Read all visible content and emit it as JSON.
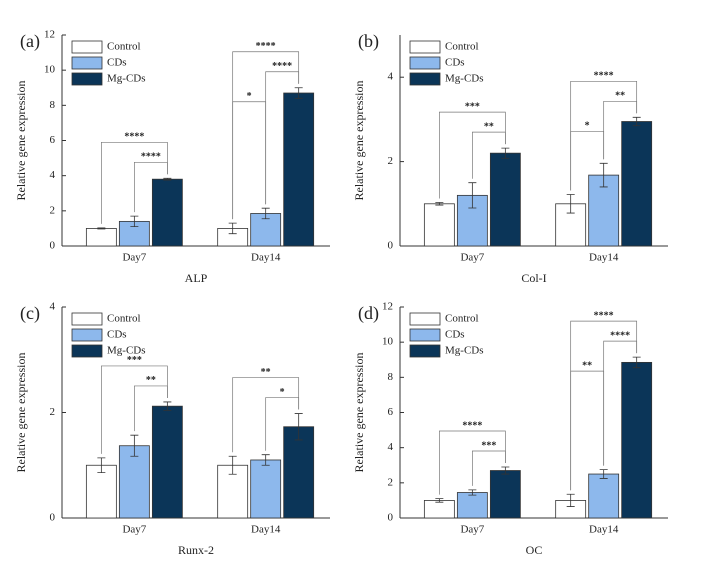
{
  "chart_data": [
    {
      "type": "bar",
      "panel_label": "(a)",
      "y_label": "Relative gene expression",
      "x_label": "ALP",
      "categories": [
        "Day7",
        "Day14"
      ],
      "series": [
        {
          "name": "Control",
          "color": "#ffffff",
          "values": [
            1.0,
            1.0
          ],
          "errors": [
            0.03,
            0.3
          ]
        },
        {
          "name": "CDs",
          "color": "#8db8ec",
          "values": [
            1.4,
            1.85
          ],
          "errors": [
            0.3,
            0.3
          ]
        },
        {
          "name": "Mg-CDs",
          "color": "#0b3558",
          "values": [
            3.8,
            8.7
          ],
          "errors": [
            0.05,
            0.3
          ]
        }
      ],
      "significance": [
        {
          "outer": "****",
          "right": "****"
        },
        {
          "outer": "****",
          "left": "*",
          "right": "****"
        }
      ],
      "ylim": [
        0,
        12
      ],
      "yticks": [
        0,
        2,
        4,
        6,
        8,
        10,
        12
      ]
    },
    {
      "type": "bar",
      "panel_label": "(b)",
      "y_label": "Relative gene expression",
      "x_label": "Col-I",
      "categories": [
        "Day7",
        "Day14"
      ],
      "series": [
        {
          "name": "Control",
          "color": "#ffffff",
          "values": [
            1.0,
            1.0
          ],
          "errors": [
            0.03,
            0.22
          ]
        },
        {
          "name": "CDs",
          "color": "#8db8ec",
          "values": [
            1.2,
            1.68
          ],
          "errors": [
            0.3,
            0.28
          ]
        },
        {
          "name": "Mg-CDs",
          "color": "#0b3558",
          "values": [
            2.2,
            2.95
          ],
          "errors": [
            0.12,
            0.1
          ]
        }
      ],
      "significance": [
        {
          "outer": "***",
          "right": "**"
        },
        {
          "outer": "****",
          "left": "*",
          "right": "**"
        }
      ],
      "ylim": [
        0,
        5
      ],
      "yticks": [
        0,
        2,
        4
      ]
    },
    {
      "type": "bar",
      "panel_label": "(c)",
      "y_label": "Relative gene expression",
      "x_label": "Runx-2",
      "categories": [
        "Day7",
        "Day14"
      ],
      "series": [
        {
          "name": "Control",
          "color": "#ffffff",
          "values": [
            1.0,
            1.0
          ],
          "errors": [
            0.14,
            0.17
          ]
        },
        {
          "name": "CDs",
          "color": "#8db8ec",
          "values": [
            1.37,
            1.1
          ],
          "errors": [
            0.2,
            0.1
          ]
        },
        {
          "name": "Mg-CDs",
          "color": "#0b3558",
          "values": [
            2.12,
            1.73
          ],
          "errors": [
            0.08,
            0.25
          ]
        }
      ],
      "significance": [
        {
          "outer": "***",
          "right": "**"
        },
        {
          "outer": "**",
          "right": "*"
        }
      ],
      "ylim": [
        0,
        4
      ],
      "yticks": [
        0,
        2,
        4
      ]
    },
    {
      "type": "bar",
      "panel_label": "(d)",
      "y_label": "Relative gene expression",
      "x_label": "OC",
      "categories": [
        "Day7",
        "Day14"
      ],
      "series": [
        {
          "name": "Control",
          "color": "#ffffff",
          "values": [
            1.0,
            1.0
          ],
          "errors": [
            0.1,
            0.35
          ]
        },
        {
          "name": "CDs",
          "color": "#8db8ec",
          "values": [
            1.45,
            2.5
          ],
          "errors": [
            0.15,
            0.25
          ]
        },
        {
          "name": "Mg-CDs",
          "color": "#0b3558",
          "values": [
            2.7,
            8.85
          ],
          "errors": [
            0.2,
            0.3
          ]
        }
      ],
      "significance": [
        {
          "outer": "****",
          "right": "***"
        },
        {
          "outer": "****",
          "left": "**",
          "right": "****"
        }
      ],
      "ylim": [
        0,
        12
      ],
      "yticks": [
        0,
        2,
        4,
        6,
        8,
        10,
        12
      ]
    }
  ]
}
